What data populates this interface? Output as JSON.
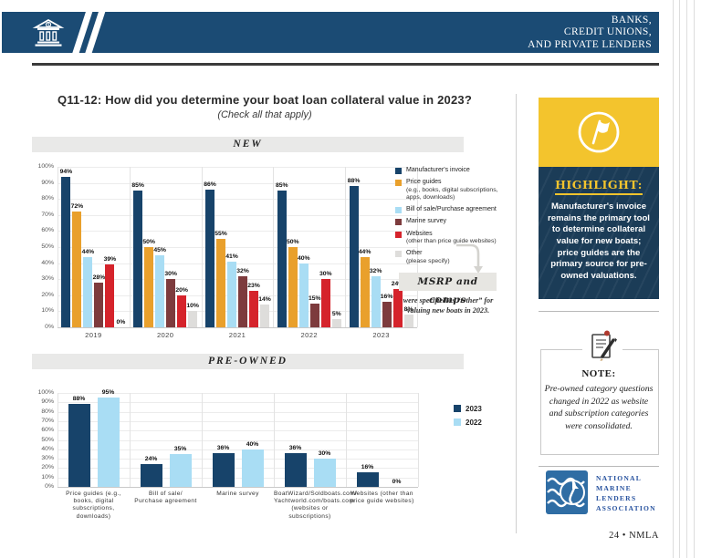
{
  "header": {
    "lines": [
      "BANKS,",
      "CREDIT UNIONS,",
      "AND PRIVATE LENDERS"
    ],
    "band_color": "#1B4B74",
    "icon": "bank-building-icon"
  },
  "question": {
    "title": "Q11-12: How did you determine your boat loan collateral value in 2023?",
    "subtitle": "(Check all that apply)"
  },
  "sections": {
    "new": "NEW",
    "preowned": "PRE-OWNED"
  },
  "chart_data": [
    {
      "type": "bar",
      "title": "NEW",
      "categories": [
        "2019",
        "2020",
        "2021",
        "2022",
        "2023"
      ],
      "series": [
        {
          "name": "Manufacturer's invoice",
          "color": "#17436A",
          "values": [
            94,
            85,
            86,
            85,
            88
          ]
        },
        {
          "name": "Price guides",
          "sub": [
            "(e.g., books, digital subscriptions,",
            "apps, downloads)"
          ],
          "color": "#E9A02C",
          "values": [
            72,
            50,
            55,
            50,
            44
          ]
        },
        {
          "name": "Bill of sale/Purchase agreement",
          "color": "#A9DDF4",
          "values": [
            44,
            45,
            41,
            40,
            32
          ]
        },
        {
          "name": "Marine survey",
          "color": "#7D3B3D",
          "values": [
            28,
            30,
            32,
            15,
            16
          ]
        },
        {
          "name": "Websites",
          "sub": [
            "(other than price guide websites)"
          ],
          "color": "#D5232B",
          "values": [
            39,
            20,
            23,
            30,
            24
          ]
        },
        {
          "name": "Other",
          "sub": [
            "(please specify)"
          ],
          "color": "#DEDDDB",
          "values": [
            0,
            10,
            14,
            5,
            8
          ]
        }
      ],
      "ylabel": "",
      "xlabel": "",
      "ylim": [
        0,
        100
      ],
      "ytick_step": 10,
      "yticks": [
        "0%",
        "10%",
        "20%",
        "30%",
        "40%",
        "50%",
        "60%",
        "70%",
        "80%",
        "90%",
        "100%"
      ],
      "grid": true,
      "legend_position": "right",
      "value_labels": true
    },
    {
      "type": "bar",
      "title": "PRE-OWNED",
      "categories": [
        [
          "Price guides (e.g., books, digital",
          "subscriptions, downloads)"
        ],
        [
          "Bill of sale/",
          "Purchase agreement"
        ],
        [
          "Marine survey"
        ],
        [
          "BoatWizard/Soldboats.com/",
          "Yachtworld.com/boats.com",
          "(websites or subscriptions)"
        ],
        [
          "Websites (other than",
          "price guide websites)"
        ]
      ],
      "series": [
        {
          "name": "2023",
          "color": "#17436A",
          "values": [
            88,
            24,
            36,
            36,
            16
          ]
        },
        {
          "name": "2022",
          "color": "#A9DDF4",
          "values": [
            95,
            35,
            40,
            30,
            0
          ]
        }
      ],
      "ylabel": "",
      "xlabel": "",
      "ylim": [
        0,
        100
      ],
      "ytick_step": 10,
      "yticks": [
        "0%",
        "10%",
        "20%",
        "30%",
        "40%",
        "50%",
        "60%",
        "70%",
        "80%",
        "90%",
        "100%"
      ],
      "grid": true,
      "legend_position": "right",
      "value_labels": true
    }
  ],
  "callout": {
    "tag": "MSRP and comps",
    "body": "were specified as “Other” for valuing new boats in 2023."
  },
  "highlight": {
    "label": "HIGHLIGHT:",
    "text": "Manufacturer's invoice remains the primary tool to determine collateral value for new boats; price guides are the primary source for pre-owned valuations.",
    "icon": "flag-icon",
    "yellow": "#F3C42D",
    "navy": "#1B3C57"
  },
  "note": {
    "label": "NOTE:",
    "text": "Pre-owned category questions changed in 2022 as website and subscription categories were consolidated.",
    "icon": "notepad-pencil-icon"
  },
  "footer": {
    "org_lines": [
      "NATIONAL",
      "MARINE",
      "LENDERS",
      "ASSOCIATION"
    ],
    "logo": "nmla-wave-logo",
    "logo_blue": "#2F6DA4",
    "page_number": "24",
    "separator": "•",
    "brand": "NMLA"
  }
}
